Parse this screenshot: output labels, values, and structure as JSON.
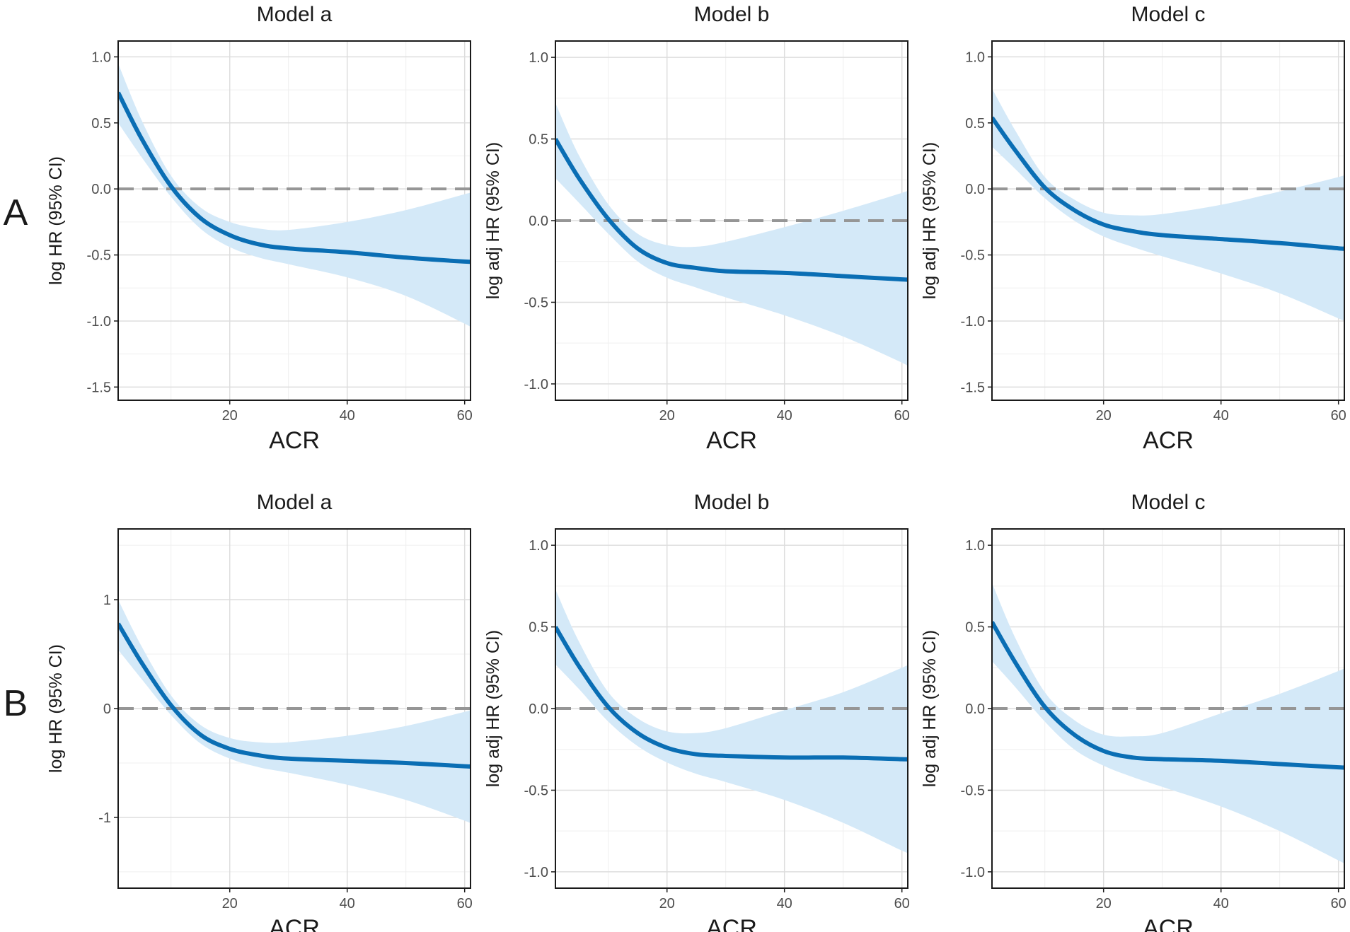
{
  "colors": {
    "line": "#0a6eb4",
    "band": "#d4e9f8",
    "ref": "#969696",
    "grid_major": "#dddddd",
    "grid_minor": "#efefef",
    "frame": "#1a1a1a"
  },
  "row_labels": [
    "A",
    "B"
  ],
  "chart_data": [
    {
      "type": "line",
      "row": "A",
      "title": "Model a",
      "xlabel": "ACR",
      "ylabel": "log HR (95% CI)",
      "xlim": [
        1,
        61
      ],
      "xticks": [
        20,
        40,
        60
      ],
      "xtick_labels": [
        "20",
        "40",
        "60"
      ],
      "ylim": [
        -1.6,
        1.12
      ],
      "yticks": [
        -1.5,
        -1.0,
        -0.5,
        0.0,
        0.5,
        1.0
      ],
      "ytick_labels": [
        "-1.5",
        "-1.0",
        "-0.5",
        "0.0",
        "0.5",
        "1.0"
      ],
      "reference_line": 0.0,
      "x": [
        1,
        5,
        10,
        15,
        20,
        25,
        30,
        40,
        50,
        60,
        61
      ],
      "y": [
        0.73,
        0.38,
        0.02,
        -0.22,
        -0.35,
        -0.42,
        -0.45,
        -0.48,
        -0.52,
        -0.55,
        -0.55
      ],
      "lower": [
        0.5,
        0.24,
        -0.06,
        -0.3,
        -0.44,
        -0.52,
        -0.57,
        -0.67,
        -0.81,
        -1.02,
        -1.05
      ],
      "upper": [
        0.95,
        0.52,
        0.1,
        -0.14,
        -0.25,
        -0.3,
        -0.31,
        -0.25,
        -0.16,
        -0.04,
        -0.03
      ]
    },
    {
      "type": "line",
      "row": "A",
      "title": "Model b",
      "xlabel": "ACR",
      "ylabel": "log adj HR (95% CI)",
      "xlim": [
        1,
        61
      ],
      "xticks": [
        20,
        40,
        60
      ],
      "xtick_labels": [
        "20",
        "40",
        "60"
      ],
      "ylim": [
        -1.1,
        1.1
      ],
      "yticks": [
        -1.0,
        -0.5,
        0.0,
        0.5,
        1.0
      ],
      "ytick_labels": [
        "-1.0",
        "-0.5",
        "0.0",
        "0.5",
        "1.0"
      ],
      "reference_line": 0.0,
      "x": [
        1,
        5,
        10,
        15,
        20,
        25,
        30,
        40,
        50,
        60,
        61
      ],
      "y": [
        0.5,
        0.26,
        0.01,
        -0.17,
        -0.26,
        -0.29,
        -0.31,
        -0.32,
        -0.34,
        -0.36,
        -0.36
      ],
      "lower": [
        0.26,
        0.11,
        -0.08,
        -0.25,
        -0.35,
        -0.41,
        -0.47,
        -0.58,
        -0.71,
        -0.87,
        -0.9
      ],
      "upper": [
        0.72,
        0.4,
        0.1,
        -0.08,
        -0.15,
        -0.16,
        -0.13,
        -0.04,
        0.06,
        0.17,
        0.19
      ]
    },
    {
      "type": "line",
      "row": "A",
      "title": "Model c",
      "xlabel": "ACR",
      "ylabel": "log adj HR (95% CI)",
      "xlim": [
        1,
        61
      ],
      "xticks": [
        20,
        40,
        60
      ],
      "xtick_labels": [
        "20",
        "40",
        "60"
      ],
      "ylim": [
        -1.6,
        1.12
      ],
      "yticks": [
        -1.5,
        -1.0,
        -0.5,
        0.0,
        0.5,
        1.0
      ],
      "ytick_labels": [
        "-1.5",
        "-1.0",
        "-0.5",
        "0.0",
        "0.5",
        "1.0"
      ],
      "reference_line": 0.0,
      "x": [
        1,
        5,
        10,
        15,
        20,
        25,
        30,
        40,
        50,
        60,
        61
      ],
      "y": [
        0.54,
        0.29,
        0.01,
        -0.16,
        -0.27,
        -0.32,
        -0.35,
        -0.38,
        -0.41,
        -0.45,
        -0.45
      ],
      "lower": [
        0.32,
        0.15,
        -0.07,
        -0.24,
        -0.36,
        -0.44,
        -0.51,
        -0.64,
        -0.79,
        -0.98,
        -1.0
      ],
      "upper": [
        0.76,
        0.44,
        0.09,
        -0.08,
        -0.18,
        -0.2,
        -0.19,
        -0.12,
        -0.02,
        0.09,
        0.11
      ]
    },
    {
      "type": "line",
      "row": "B",
      "title": "Model a",
      "xlabel": "ACR",
      "ylabel": "log HR (95% CI)",
      "xlim": [
        1,
        61
      ],
      "xticks": [
        20,
        40,
        60
      ],
      "xtick_labels": [
        "20",
        "40",
        "60"
      ],
      "ylim": [
        -1.65,
        1.65
      ],
      "yticks": [
        -1,
        0,
        1
      ],
      "ytick_labels": [
        "-1",
        "0",
        "1"
      ],
      "reference_line": 0.0,
      "x": [
        1,
        5,
        10,
        15,
        20,
        25,
        30,
        40,
        50,
        60,
        61
      ],
      "y": [
        0.78,
        0.42,
        0.03,
        -0.24,
        -0.37,
        -0.43,
        -0.46,
        -0.48,
        -0.5,
        -0.53,
        -0.53
      ],
      "lower": [
        0.54,
        0.27,
        -0.06,
        -0.32,
        -0.46,
        -0.54,
        -0.59,
        -0.7,
        -0.84,
        -1.03,
        -1.06
      ],
      "upper": [
        1.0,
        0.57,
        0.12,
        -0.15,
        -0.27,
        -0.31,
        -0.31,
        -0.25,
        -0.16,
        -0.03,
        -0.01
      ]
    },
    {
      "type": "line",
      "row": "B",
      "title": "Model b",
      "xlabel": "ACR",
      "ylabel": "log adj HR (95% CI)",
      "xlim": [
        1,
        61
      ],
      "xticks": [
        20,
        40,
        60
      ],
      "xtick_labels": [
        "20",
        "40",
        "60"
      ],
      "ylim": [
        -1.1,
        1.1
      ],
      "yticks": [
        -1.0,
        -0.5,
        0.0,
        0.5,
        1.0
      ],
      "ytick_labels": [
        "-1.0",
        "-0.5",
        "0.0",
        "0.5",
        "1.0"
      ],
      "reference_line": 0.0,
      "x": [
        1,
        5,
        10,
        15,
        20,
        25,
        30,
        40,
        50,
        60,
        61
      ],
      "y": [
        0.5,
        0.26,
        0.01,
        -0.15,
        -0.24,
        -0.28,
        -0.29,
        -0.3,
        -0.3,
        -0.31,
        -0.31
      ],
      "lower": [
        0.27,
        0.12,
        -0.08,
        -0.23,
        -0.33,
        -0.4,
        -0.45,
        -0.56,
        -0.7,
        -0.87,
        -0.88
      ],
      "upper": [
        0.73,
        0.41,
        0.1,
        -0.06,
        -0.14,
        -0.15,
        -0.12,
        -0.01,
        0.1,
        0.25,
        0.27
      ]
    },
    {
      "type": "line",
      "row": "B",
      "title": "Model c",
      "xlabel": "ACR",
      "ylabel": "log adj HR (95% CI)",
      "xlim": [
        1,
        61
      ],
      "xticks": [
        20,
        40,
        60
      ],
      "xtick_labels": [
        "20",
        "40",
        "60"
      ],
      "ylim": [
        -1.1,
        1.1
      ],
      "yticks": [
        -1.0,
        -0.5,
        0.0,
        0.5,
        1.0
      ],
      "ytick_labels": [
        "-1.0",
        "-0.5",
        "0.0",
        "0.5",
        "1.0"
      ],
      "reference_line": 0.0,
      "x": [
        1,
        5,
        10,
        15,
        20,
        25,
        30,
        40,
        50,
        60,
        61
      ],
      "y": [
        0.53,
        0.28,
        0.01,
        -0.16,
        -0.26,
        -0.3,
        -0.31,
        -0.32,
        -0.34,
        -0.36,
        -0.36
      ],
      "lower": [
        0.29,
        0.13,
        -0.08,
        -0.25,
        -0.35,
        -0.42,
        -0.48,
        -0.6,
        -0.75,
        -0.93,
        -0.95
      ],
      "upper": [
        0.77,
        0.43,
        0.1,
        -0.07,
        -0.16,
        -0.17,
        -0.15,
        -0.03,
        0.09,
        0.23,
        0.25
      ]
    }
  ]
}
